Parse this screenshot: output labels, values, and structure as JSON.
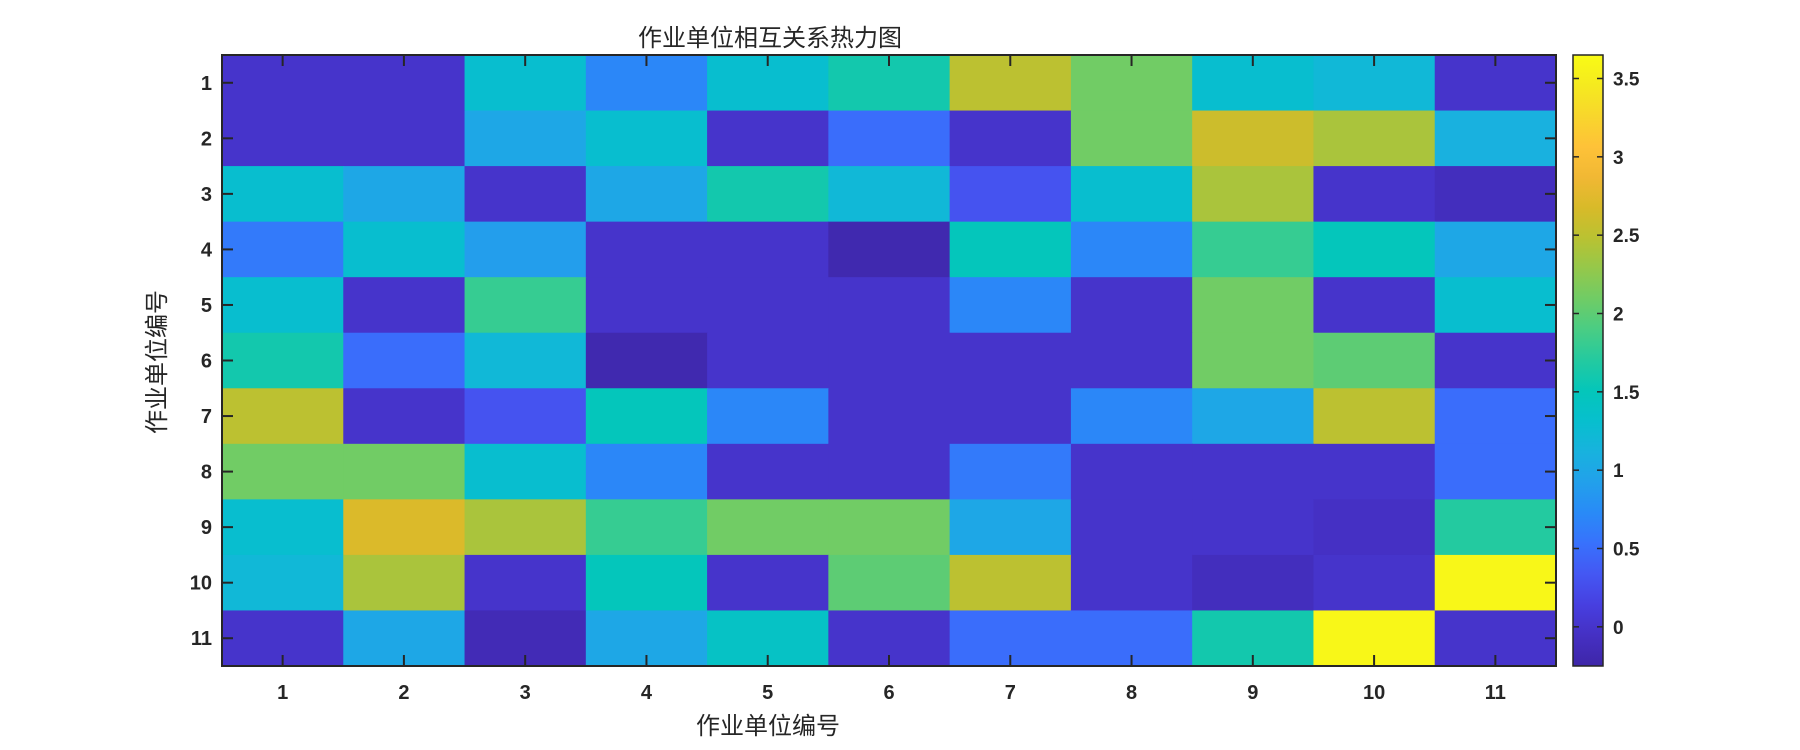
{
  "chart_data": {
    "type": "heatmap",
    "title": "作业单位相互关系热力图",
    "xlabel": "作业单位编号",
    "ylabel": "作业单位编号",
    "x_categories": [
      "1",
      "2",
      "3",
      "4",
      "5",
      "6",
      "7",
      "8",
      "9",
      "10",
      "11"
    ],
    "y_categories": [
      "1",
      "2",
      "3",
      "4",
      "5",
      "6",
      "7",
      "8",
      "9",
      "10",
      "11"
    ],
    "values": [
      [
        0,
        0,
        1.3,
        0.7,
        1.3,
        1.6,
        2.5,
        2.1,
        1.3,
        1.2,
        0
      ],
      [
        0,
        0,
        1.0,
        1.3,
        0,
        0.5,
        0,
        2.1,
        2.6,
        2.4,
        1.1
      ],
      [
        1.3,
        1.0,
        0,
        1.0,
        1.6,
        1.2,
        0.3,
        1.3,
        2.4,
        0,
        -0.1
      ],
      [
        0.6,
        1.3,
        0.9,
        0,
        0,
        -0.2,
        1.5,
        0.7,
        1.8,
        1.5,
        1.0
      ],
      [
        1.3,
        0,
        1.8,
        0,
        0,
        0,
        0.7,
        0,
        2.1,
        0,
        1.3
      ],
      [
        1.6,
        0.5,
        1.2,
        -0.2,
        0,
        0,
        0,
        0,
        2.1,
        2.0,
        0
      ],
      [
        2.5,
        0,
        0.3,
        1.5,
        0.7,
        0,
        0,
        0.7,
        1.0,
        2.5,
        0.5
      ],
      [
        2.1,
        2.1,
        1.3,
        0.7,
        0,
        0,
        0.6,
        0,
        0,
        0,
        0.5
      ],
      [
        1.3,
        2.7,
        2.4,
        1.8,
        2.1,
        2.1,
        1.0,
        0,
        0,
        -0.05,
        1.7
      ],
      [
        1.2,
        2.4,
        0,
        1.5,
        0,
        2.0,
        2.5,
        0,
        -0.1,
        0,
        3.6
      ],
      [
        0,
        1.0,
        -0.15,
        1.0,
        1.4,
        0,
        0.5,
        0.5,
        1.6,
        3.6,
        0
      ]
    ],
    "colorbar": {
      "range": [
        -0.25,
        3.65
      ],
      "ticks": [
        0,
        0.5,
        1,
        1.5,
        2,
        2.5,
        3,
        3.5
      ],
      "tick_labels": [
        "0",
        "0.5",
        "1",
        "1.5",
        "2",
        "2.5",
        "3",
        "3.5"
      ],
      "colormap": "parula"
    }
  }
}
